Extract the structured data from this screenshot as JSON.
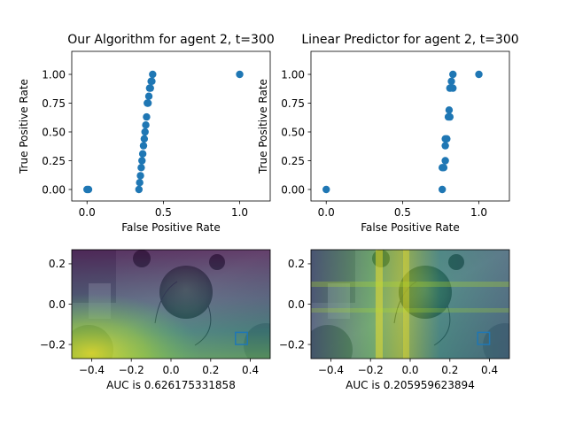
{
  "chart_data": [
    {
      "type": "scatter",
      "title": "Our Algorithm for agent 2, t=300",
      "xlabel": "False Positive Rate",
      "ylabel": "True Positive Rate",
      "xlim": [
        -0.1,
        1.2
      ],
      "ylim": [
        -0.1,
        1.2
      ],
      "xticks": [
        0.0,
        0.5,
        1.0
      ],
      "yticks": [
        0.0,
        0.25,
        0.5,
        0.75,
        1.0
      ],
      "xtick_labels": [
        "0.0",
        "0.5",
        "1.0"
      ],
      "ytick_labels": [
        "0.00",
        "0.25",
        "0.50",
        "0.75",
        "1.00"
      ],
      "grid": false,
      "marker_color": "#1f77b4",
      "points": [
        [
          0.0,
          0.0
        ],
        [
          0.01,
          0.0
        ],
        [
          0.34,
          0.0
        ],
        [
          0.345,
          0.06
        ],
        [
          0.35,
          0.12
        ],
        [
          0.355,
          0.19
        ],
        [
          0.36,
          0.25
        ],
        [
          0.365,
          0.31
        ],
        [
          0.37,
          0.38
        ],
        [
          0.375,
          0.44
        ],
        [
          0.38,
          0.5
        ],
        [
          0.385,
          0.56
        ],
        [
          0.39,
          0.63
        ],
        [
          0.395,
          0.75
        ],
        [
          0.4,
          0.75
        ],
        [
          0.405,
          0.81
        ],
        [
          0.41,
          0.88
        ],
        [
          0.415,
          0.88
        ],
        [
          0.42,
          0.94
        ],
        [
          0.425,
          0.94
        ],
        [
          0.43,
          1.0
        ],
        [
          1.0,
          1.0
        ]
      ]
    },
    {
      "type": "scatter",
      "title": "Linear Predictor for agent 2, t=300",
      "xlabel": "False Positive Rate",
      "ylabel": "True Positive Rate",
      "xlim": [
        -0.1,
        1.2
      ],
      "ylim": [
        -0.1,
        1.2
      ],
      "xticks": [
        0.0,
        0.5,
        1.0
      ],
      "yticks": [
        0.0,
        0.25,
        0.5,
        0.75,
        1.0
      ],
      "xtick_labels": [
        "0.0",
        "0.5",
        "1.0"
      ],
      "ytick_labels": [
        "0.00",
        "0.25",
        "0.50",
        "0.75",
        "1.00"
      ],
      "grid": false,
      "marker_color": "#1f77b4",
      "points": [
        [
          0.0,
          0.0
        ],
        [
          0.76,
          0.0
        ],
        [
          0.76,
          0.19
        ],
        [
          0.78,
          0.25
        ],
        [
          0.77,
          0.19
        ],
        [
          0.78,
          0.38
        ],
        [
          0.79,
          0.44
        ],
        [
          0.78,
          0.44
        ],
        [
          0.8,
          0.63
        ],
        [
          0.81,
          0.63
        ],
        [
          0.805,
          0.69
        ],
        [
          0.81,
          0.88
        ],
        [
          0.83,
          0.88
        ],
        [
          0.82,
          0.94
        ],
        [
          0.83,
          1.0
        ],
        [
          1.0,
          1.0
        ]
      ]
    },
    {
      "type": "heatmap",
      "xlabel": "AUC is 0.626175331858",
      "ylabel": "",
      "xlim": [
        -0.5,
        0.5
      ],
      "ylim": [
        -0.27,
        0.27
      ],
      "xticks": [
        -0.4,
        -0.2,
        0.0,
        0.2,
        0.4
      ],
      "yticks": [
        -0.2,
        0.0,
        0.2
      ],
      "xtick_labels": [
        "−0.4",
        "−0.2",
        "0.0",
        "0.2",
        "0.4"
      ],
      "ytick_labels": [
        "−0.2",
        "0.0",
        "0.2"
      ],
      "grid": false,
      "colormap": "viridis",
      "highlight_box": {
        "x": [
          0.325,
          0.385
        ],
        "y": [
          -0.2,
          -0.14
        ],
        "color": "#1f77b4"
      }
    },
    {
      "type": "heatmap",
      "xlabel": "AUC is 0.205959623894",
      "ylabel": "",
      "xlim": [
        -0.5,
        0.5
      ],
      "ylim": [
        -0.27,
        0.27
      ],
      "xticks": [
        -0.4,
        -0.2,
        0.0,
        0.2,
        0.4
      ],
      "yticks": [
        -0.2,
        0.0,
        0.2
      ],
      "xtick_labels": [
        "−0.4",
        "−0.2",
        "0.0",
        "0.2",
        "0.4"
      ],
      "ytick_labels": [
        "−0.2",
        "0.0",
        "0.2"
      ],
      "grid": false,
      "colormap": "viridis",
      "highlight_box": {
        "x": [
          0.34,
          0.4
        ],
        "y": [
          -0.2,
          -0.14
        ],
        "color": "#1f77b4"
      }
    }
  ]
}
